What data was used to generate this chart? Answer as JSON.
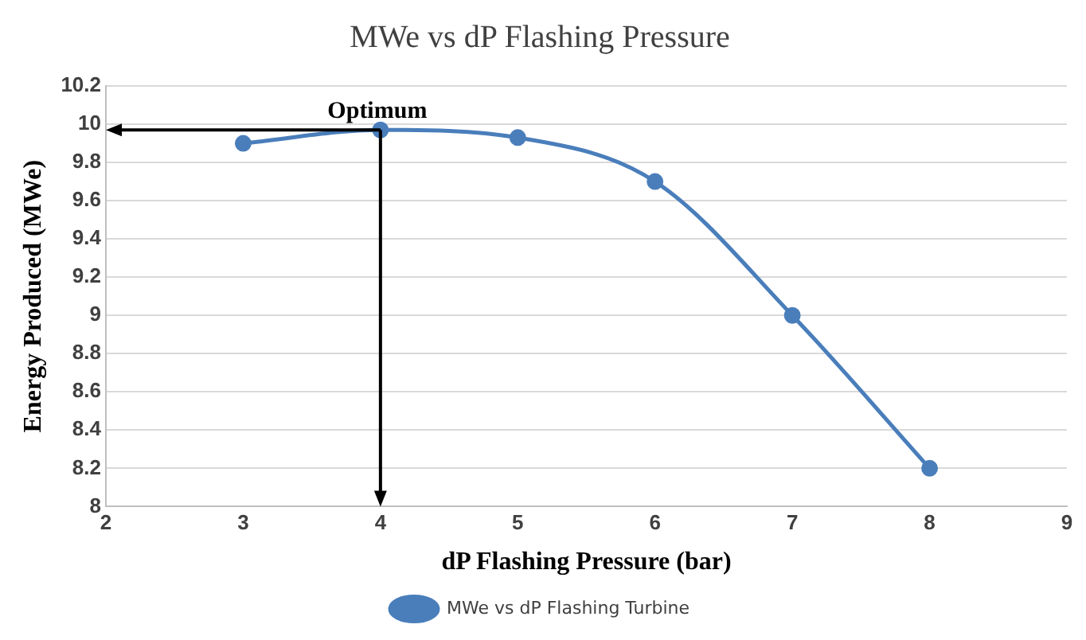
{
  "chart_data": {
    "type": "line",
    "title": "MWe vs dP Flashing Pressure",
    "xlabel": "dP Flashing Pressure (bar)",
    "ylabel": "Energy Produced (MWe)",
    "x": [
      3,
      4,
      5,
      6,
      7,
      8
    ],
    "series": [
      {
        "name": "MWe vs dP Flashing Turbine",
        "color": "#4a7ebb",
        "values": [
          9.9,
          9.97,
          9.93,
          9.7,
          9.0,
          8.2
        ]
      }
    ],
    "xlim": [
      2,
      9
    ],
    "xticks": [
      2,
      3,
      4,
      5,
      6,
      7,
      8,
      9
    ],
    "ylim": [
      8,
      10.2
    ],
    "yticks": [
      8,
      {
        "value": 8.2,
        "label": "8.2"
      },
      {
        "value": 8.4,
        "label": "8.4"
      },
      {
        "value": 8.6,
        "label": "8.6"
      },
      {
        "value": 8.8,
        "label": "8.8"
      },
      9,
      {
        "value": 9.2,
        "label": "9.2"
      },
      {
        "value": 9.4,
        "label": "9.4"
      },
      {
        "value": 9.6,
        "label": "9.6"
      },
      {
        "value": 9.8,
        "label": "9.8"
      },
      10,
      {
        "value": 10.2,
        "label": "10.2"
      }
    ],
    "annotations": [
      {
        "text": "Optimum",
        "x": 4,
        "y": 9.97
      }
    ],
    "grid": "y",
    "legend": "bottom",
    "marker": "circle",
    "line_style": "solid"
  }
}
